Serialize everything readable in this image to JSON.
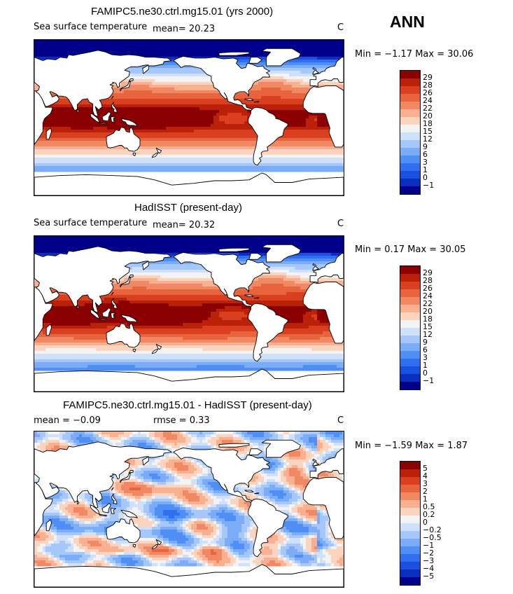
{
  "season": "ANN",
  "panels": [
    {
      "title": "FAMIPC5.ne30.ctrl.mg15.01 (yrs 2000)",
      "variable": "Sea surface temperature",
      "stat1": "mean=   20.23",
      "stat2": "",
      "unit": "C",
      "minmax": "Min =   −1.17 Max =   30.06",
      "kind": "abs"
    },
    {
      "title": "HadISST (present-day)",
      "variable": "Sea surface temperature",
      "stat1": "mean=   20.32",
      "stat2": "",
      "unit": "C",
      "minmax": "Min =    0.17 Max =   30.05",
      "kind": "abs"
    },
    {
      "title": "FAMIPC5.ne30.ctrl.mg15.01 - HadISST (present-day)",
      "variable": "",
      "stat1": "mean =   −0.09",
      "stat2": "rmse =    0.33",
      "unit": "C",
      "minmax": "Min =   −1.59 Max =    1.87",
      "kind": "diff"
    }
  ],
  "chart_data": [
    {
      "type": "heatmap",
      "title": "FAMIPC5.ne30.ctrl.mg15.01 (yrs 2000)",
      "variable": "Sea surface temperature",
      "units": "C",
      "mean": 20.23,
      "min": -1.17,
      "max": 30.06,
      "colorbar_levels": [
        "−1",
        "0",
        "1",
        "3",
        "6",
        "9",
        "12",
        "15",
        "18",
        "20",
        "22",
        "24",
        "26",
        "28",
        "29"
      ],
      "colorbar_colors": [
        "#00008b",
        "#0a2fbf",
        "#1b4fe0",
        "#2f6ff0",
        "#4f8ef5",
        "#7aacf7",
        "#a5c7fa",
        "#cfe0fb",
        "#f3f3f3",
        "#fbd4bf",
        "#f8b090",
        "#f08963",
        "#e8643d",
        "#da3f1f",
        "#bb2008",
        "#8b0000"
      ]
    },
    {
      "type": "heatmap",
      "title": "HadISST (present-day)",
      "variable": "Sea surface temperature",
      "units": "C",
      "mean": 20.32,
      "min": 0.17,
      "max": 30.05,
      "colorbar_levels": [
        "−1",
        "0",
        "1",
        "3",
        "6",
        "9",
        "12",
        "15",
        "18",
        "20",
        "22",
        "24",
        "26",
        "28",
        "29"
      ],
      "colorbar_colors": [
        "#00008b",
        "#0a2fbf",
        "#1b4fe0",
        "#2f6ff0",
        "#4f8ef5",
        "#7aacf7",
        "#a5c7fa",
        "#cfe0fb",
        "#f3f3f3",
        "#fbd4bf",
        "#f8b090",
        "#f08963",
        "#e8643d",
        "#da3f1f",
        "#bb2008",
        "#8b0000"
      ]
    },
    {
      "type": "heatmap",
      "title": "FAMIPC5.ne30.ctrl.mg15.01 - HadISST (present-day)",
      "units": "C",
      "mean": -0.09,
      "rmse": 0.33,
      "min": -1.59,
      "max": 1.87,
      "colorbar_levels": [
        "−5",
        "−4",
        "−3",
        "−2",
        "−1",
        "−0.5",
        "−0.2",
        "0",
        "0.2",
        "0.5",
        "1",
        "2",
        "3",
        "4",
        "5"
      ],
      "colorbar_colors": [
        "#00008b",
        "#0a2fbf",
        "#1b4fe0",
        "#2f6ff0",
        "#4f8ef5",
        "#7aacf7",
        "#a5c7fa",
        "#cfe0fb",
        "#f3f3f3",
        "#fbd4bf",
        "#f8b090",
        "#f08963",
        "#e8643d",
        "#da3f1f",
        "#bb2008",
        "#8b0000"
      ]
    }
  ]
}
